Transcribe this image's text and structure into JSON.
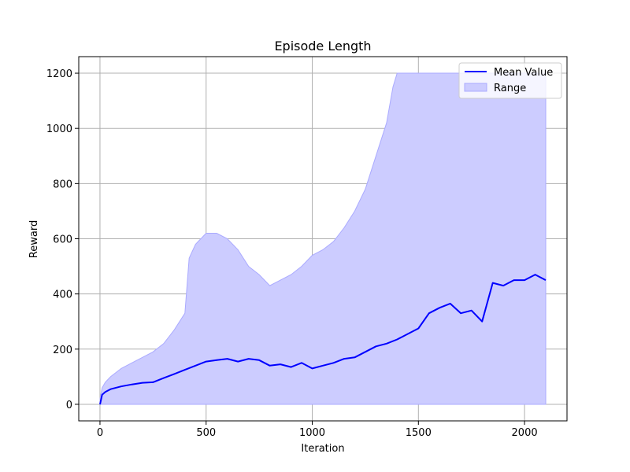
{
  "chart_data": {
    "type": "line",
    "title": "Episode Length",
    "xlabel": "Iteration",
    "ylabel": "Reward",
    "xlim": [
      -100,
      2200
    ],
    "ylim": [
      -60,
      1260
    ],
    "xticks": [
      0,
      500,
      1000,
      1500,
      2000
    ],
    "yticks": [
      0,
      200,
      400,
      600,
      800,
      1000,
      1200
    ],
    "grid": true,
    "legend": {
      "placement": "top-right",
      "entries": [
        "Mean Value",
        "Range"
      ]
    },
    "colors": {
      "mean": "#0000ff",
      "range_fill": "#ccccff",
      "range_edge": "#aaaaff",
      "grid": "#b0b0b0"
    },
    "series": [
      {
        "name": "Mean Value",
        "kind": "line",
        "x": [
          0,
          10,
          25,
          50,
          100,
          150,
          200,
          250,
          300,
          350,
          400,
          450,
          500,
          550,
          600,
          650,
          700,
          750,
          800,
          850,
          900,
          950,
          1000,
          1050,
          1100,
          1150,
          1200,
          1250,
          1300,
          1350,
          1400,
          1450,
          1500,
          1550,
          1600,
          1650,
          1700,
          1750,
          1800,
          1850,
          1900,
          1950,
          2000,
          2050,
          2100
        ],
        "y": [
          0,
          35,
          45,
          55,
          65,
          72,
          78,
          80,
          95,
          110,
          125,
          140,
          155,
          160,
          165,
          155,
          165,
          160,
          140,
          145,
          135,
          150,
          130,
          140,
          150,
          165,
          170,
          190,
          210,
          220,
          235,
          255,
          275,
          330,
          350,
          365,
          330,
          340,
          300,
          440,
          430,
          450,
          450,
          470,
          450
        ]
      },
      {
        "name": "Range",
        "kind": "band",
        "x": [
          0,
          10,
          25,
          50,
          100,
          150,
          200,
          250,
          300,
          350,
          400,
          420,
          450,
          500,
          550,
          600,
          650,
          700,
          750,
          800,
          850,
          900,
          950,
          1000,
          1050,
          1100,
          1150,
          1200,
          1250,
          1300,
          1350,
          1380,
          1400,
          1450,
          1500,
          1550,
          1600,
          1650,
          1700,
          1750,
          1800,
          1850,
          1900,
          1950,
          2000,
          2050,
          2100
        ],
        "upper": [
          20,
          60,
          80,
          100,
          130,
          150,
          170,
          190,
          220,
          270,
          330,
          530,
          580,
          620,
          620,
          600,
          560,
          500,
          470,
          430,
          450,
          470,
          500,
          540,
          560,
          590,
          640,
          700,
          780,
          900,
          1020,
          1150,
          1200,
          1200,
          1200,
          1200,
          1200,
          1200,
          1200,
          1200,
          1200,
          1200,
          1200,
          1200,
          1200,
          1200,
          1200
        ],
        "lower": [
          0,
          0,
          0,
          0,
          0,
          0,
          0,
          0,
          0,
          0,
          0,
          0,
          0,
          0,
          0,
          0,
          0,
          0,
          0,
          0,
          0,
          0,
          0,
          0,
          0,
          0,
          0,
          0,
          0,
          0,
          0,
          0,
          0,
          0,
          0,
          0,
          0,
          0,
          0,
          0,
          0,
          0,
          0,
          0,
          0,
          0,
          0
        ]
      }
    ]
  }
}
